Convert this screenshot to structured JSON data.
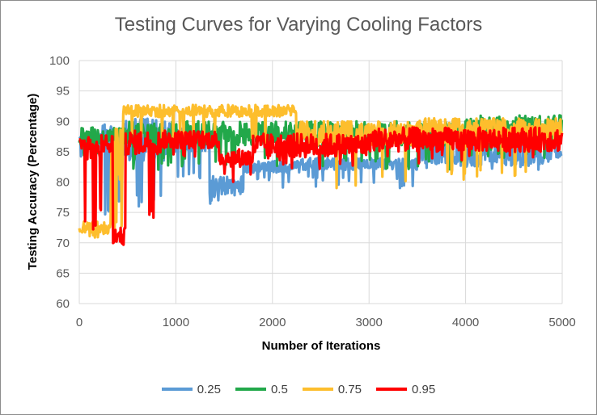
{
  "colors": {
    "s025": "#5b9bd5",
    "s05": "#22a84a",
    "s075": "#fdbe2d",
    "s095": "#ff0000",
    "grid": "#d9d9d9",
    "axis_text": "#595959"
  },
  "chart_data": {
    "type": "line",
    "title": "Testing Curves for Varying Cooling Factors",
    "xlabel": "Number of Iterations",
    "ylabel": "Testing Accuracy (Percentage)",
    "xlim": [
      0,
      5000
    ],
    "ylim": [
      60,
      100
    ],
    "xticks": [
      0,
      1000,
      2000,
      3000,
      4000,
      5000
    ],
    "yticks": [
      60,
      65,
      70,
      75,
      80,
      85,
      90,
      95,
      100
    ],
    "grid": true,
    "legend_position": "bottom",
    "series": [
      {
        "name": "0.25",
        "color_key": "s025",
        "segments": [
          {
            "x": [
              0,
              100
            ],
            "base": 86,
            "noise": 2,
            "dip": 72,
            "dipProb": 0.08
          },
          {
            "x": [
              100,
              400
            ],
            "base": 87,
            "noise": 2.5,
            "dip": 74,
            "dipProb": 0.08
          },
          {
            "x": [
              400,
              950
            ],
            "base": 87,
            "noise": 3.5,
            "dip": 76,
            "dipProb": 0.1
          },
          {
            "x": [
              950,
              1350
            ],
            "base": 87,
            "noise": 2,
            "dip": 80,
            "dipProb": 0.06
          },
          {
            "x": [
              1350,
              1700
            ],
            "base": 79.5,
            "noise": 1.5,
            "dip": 76,
            "dipProb": 0.08
          },
          {
            "x": [
              1700,
              2300
            ],
            "base": 82.5,
            "noise": 1,
            "dip": 79,
            "dipProb": 0.06
          },
          {
            "x": [
              2300,
              3500
            ],
            "base": 83,
            "noise": 1,
            "dip": 79,
            "dipProb": 0.05
          },
          {
            "x": [
              3500,
              5000
            ],
            "base": 85,
            "noise": 2.5,
            "dip": 82,
            "dipProb": 0.05
          }
        ]
      },
      {
        "name": "0.5",
        "color_key": "s05",
        "segments": [
          {
            "x": [
              0,
              500
            ],
            "base": 87.5,
            "noise": 1.5,
            "dip": 84,
            "dipProb": 0.05
          },
          {
            "x": [
              500,
              2000
            ],
            "base": 88,
            "noise": 2,
            "dip": 82,
            "dipProb": 0.06
          },
          {
            "x": [
              2000,
              4000
            ],
            "base": 88,
            "noise": 2,
            "dip": 82,
            "dipProb": 0.06
          },
          {
            "x": [
              4000,
              5000
            ],
            "base": 89,
            "noise": 2,
            "dip": 84,
            "dipProb": 0.05
          }
        ]
      },
      {
        "name": "0.75",
        "color_key": "s075",
        "segments": [
          {
            "x": [
              0,
              330
            ],
            "base": 72.5,
            "noise": 1,
            "dip": 70.5,
            "dipProb": 0.1
          },
          {
            "x": [
              330,
              450
            ],
            "base": 84,
            "noise": 5,
            "dip": 72,
            "dipProb": 0.15
          },
          {
            "x": [
              450,
              2250
            ],
            "base": 91.7,
            "noise": 1,
            "dip": 86,
            "dipProb": 0.04
          },
          {
            "x": [
              2250,
              3500
            ],
            "base": 88,
            "noise": 2,
            "dip": 79,
            "dipProb": 0.04
          },
          {
            "x": [
              3500,
              5000
            ],
            "base": 88.5,
            "noise": 2,
            "dip": 80,
            "dipProb": 0.04
          }
        ]
      },
      {
        "name": "0.95",
        "color_key": "s095",
        "segments": [
          {
            "x": [
              0,
              60
            ],
            "base": 86.5,
            "noise": 1,
            "dip": 85,
            "dipProb": 0.05
          },
          {
            "x": [
              60,
              200
            ],
            "base": 86,
            "noise": 2.5,
            "dip": 72,
            "dipProb": 0.15
          },
          {
            "x": [
              200,
              350
            ],
            "base": 86,
            "noise": 2,
            "dip": 74,
            "dipProb": 0.1
          },
          {
            "x": [
              350,
              480
            ],
            "base": 71,
            "noise": 1.5,
            "dip": 69.5,
            "dipProb": 0.1
          },
          {
            "x": [
              480,
              850
            ],
            "base": 86.5,
            "noise": 2,
            "dip": 74,
            "dipProb": 0.05
          },
          {
            "x": [
              850,
              1450
            ],
            "base": 87,
            "noise": 1.5,
            "dip": 84,
            "dipProb": 0.04
          },
          {
            "x": [
              1450,
              1800
            ],
            "base": 84,
            "noise": 1.5,
            "dip": 80,
            "dipProb": 0.05
          },
          {
            "x": [
              1800,
              3000
            ],
            "base": 86,
            "noise": 2,
            "dip": 82,
            "dipProb": 0.04
          },
          {
            "x": [
              3000,
              5000
            ],
            "base": 87,
            "noise": 2,
            "dip": 83,
            "dipProb": 0.04
          }
        ]
      }
    ]
  }
}
